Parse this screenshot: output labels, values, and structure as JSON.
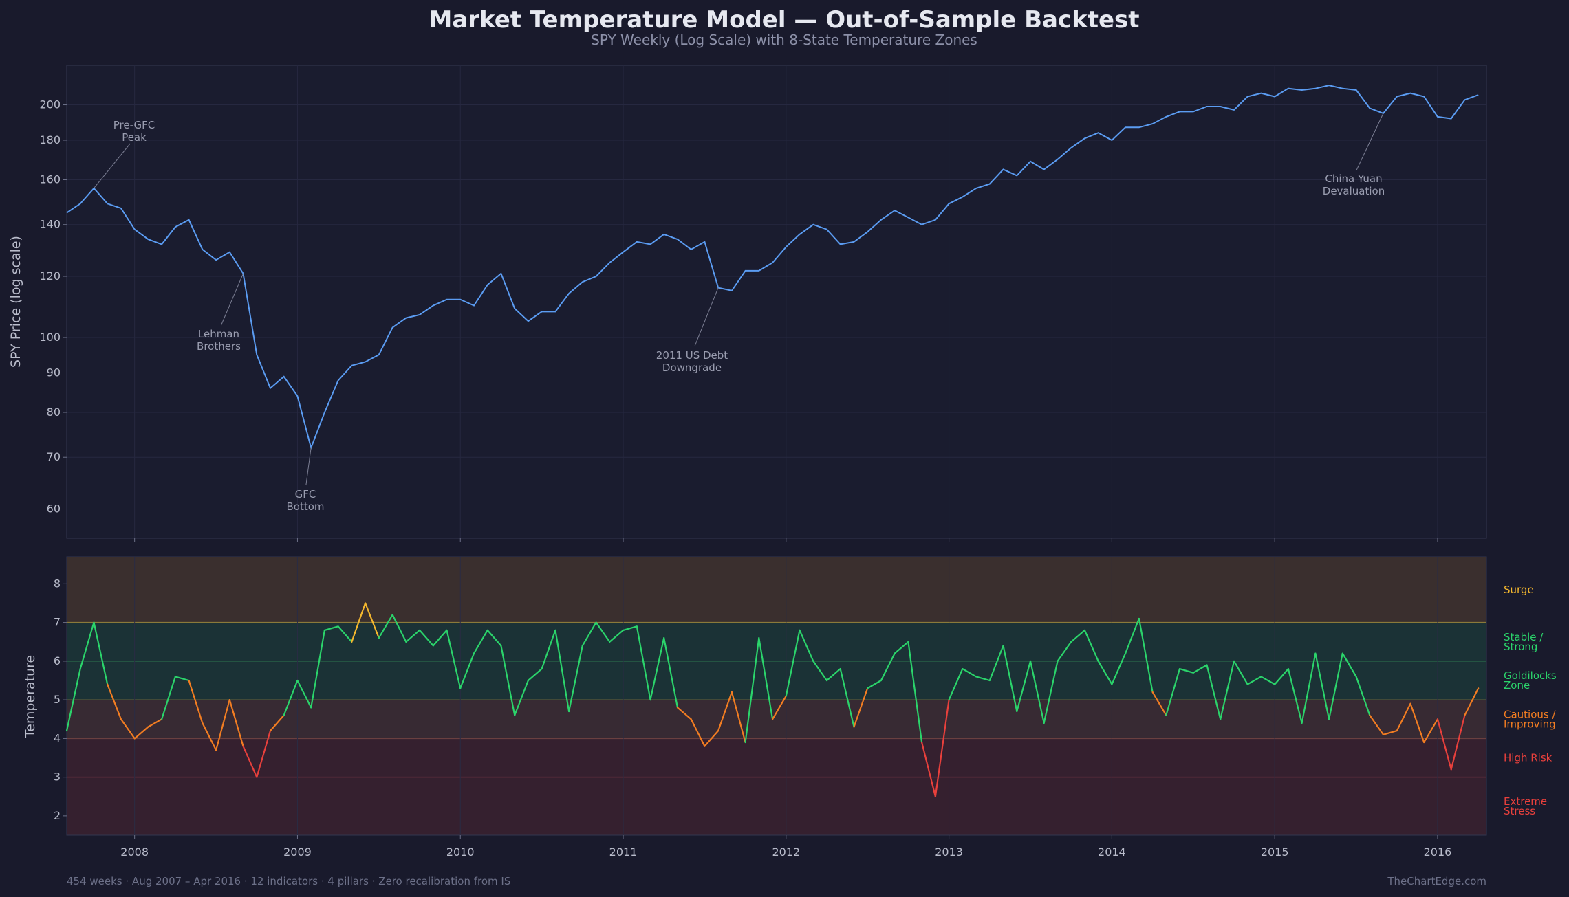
{
  "title": "Market Temperature Model — Out-of-Sample Backtest",
  "subtitle": "SPY Weekly (Log Scale) with 8-State Temperature Zones",
  "footer_left": "454 weeks · Aug 2007 – Apr 2016 · 12 indicators · 4 pillars · Zero recalibration from IS",
  "footer_right": "TheChartEdge.com",
  "colors": {
    "background": "#191a2c",
    "price_line": "#5b9cf2",
    "surge": "#f5b82e",
    "stable": "#2bd46b",
    "goldilocks": "#2bd46b",
    "cautious": "#f27d22",
    "high_risk": "#e8403c",
    "extreme": "#e8403c"
  },
  "chart_data": [
    {
      "type": "line",
      "title": "",
      "ylabel": "SPY Price (log scale)",
      "xlabel": "",
      "scale": "log",
      "ylim": [
        55,
        225
      ],
      "yticks": [
        60,
        70,
        80,
        90,
        100,
        120,
        140,
        160,
        180,
        200
      ],
      "xlim": [
        "2007-08",
        "2016-04"
      ],
      "xticks": [
        "2008",
        "2009",
        "2010",
        "2011",
        "2012",
        "2013",
        "2014",
        "2015",
        "2016"
      ],
      "grid": true,
      "series": [
        {
          "x": [
            "2007-08",
            "2007-09",
            "2007-10",
            "2007-11",
            "2007-12",
            "2008-01",
            "2008-02",
            "2008-03",
            "2008-04",
            "2008-05",
            "2008-06",
            "2008-07",
            "2008-08",
            "2008-09",
            "2008-10",
            "2008-11",
            "2008-12",
            "2009-01",
            "2009-02",
            "2009-03",
            "2009-04",
            "2009-05",
            "2009-06",
            "2009-07",
            "2009-08",
            "2009-09",
            "2009-10",
            "2009-11",
            "2009-12",
            "2010-01",
            "2010-02",
            "2010-03",
            "2010-04",
            "2010-05",
            "2010-06",
            "2010-07",
            "2010-08",
            "2010-09",
            "2010-10",
            "2010-11",
            "2010-12",
            "2011-01",
            "2011-02",
            "2011-03",
            "2011-04",
            "2011-05",
            "2011-06",
            "2011-07",
            "2011-08",
            "2011-09",
            "2011-10",
            "2011-11",
            "2011-12",
            "2012-01",
            "2012-02",
            "2012-03",
            "2012-04",
            "2012-05",
            "2012-06",
            "2012-07",
            "2012-08",
            "2012-09",
            "2012-10",
            "2012-11",
            "2012-12",
            "2013-01",
            "2013-02",
            "2013-03",
            "2013-04",
            "2013-05",
            "2013-06",
            "2013-07",
            "2013-08",
            "2013-09",
            "2013-10",
            "2013-11",
            "2013-12",
            "2014-01",
            "2014-02",
            "2014-03",
            "2014-04",
            "2014-05",
            "2014-06",
            "2014-07",
            "2014-08",
            "2014-09",
            "2014-10",
            "2014-11",
            "2014-12",
            "2015-01",
            "2015-02",
            "2015-03",
            "2015-04",
            "2015-05",
            "2015-06",
            "2015-07",
            "2015-08",
            "2015-09",
            "2015-10",
            "2015-11",
            "2015-12",
            "2016-01",
            "2016-02",
            "2016-03",
            "2016-04"
          ],
          "y": [
            145,
            149,
            156,
            149,
            147,
            138,
            134,
            132,
            139,
            142,
            130,
            126,
            129,
            121,
            95,
            86,
            89,
            84,
            72,
            80,
            88,
            92,
            93,
            95,
            103,
            106,
            107,
            110,
            112,
            112,
            110,
            117,
            121,
            109,
            105,
            108,
            108,
            114,
            118,
            120,
            125,
            129,
            133,
            132,
            136,
            134,
            130,
            133,
            116,
            115,
            122,
            122,
            125,
            131,
            136,
            140,
            138,
            132,
            133,
            137,
            142,
            146,
            143,
            140,
            142,
            149,
            152,
            156,
            158,
            165,
            162,
            169,
            165,
            170,
            176,
            181,
            184,
            180,
            187,
            187,
            189,
            193,
            196,
            196,
            199,
            199,
            197,
            205,
            207,
            205,
            210,
            209,
            210,
            212,
            210,
            209,
            198,
            195,
            205,
            207,
            205,
            193,
            192,
            203,
            206
          ]
        }
      ],
      "annotations": [
        {
          "text_lines": [
            "Pre-GFC",
            "Peak"
          ]
        },
        {
          "text_lines": [
            "Lehman",
            "Brothers"
          ]
        },
        {
          "text_lines": [
            "GFC",
            "Bottom"
          ]
        },
        {
          "text_lines": [
            "2011 US Debt",
            "Downgrade"
          ]
        },
        {
          "text_lines": [
            "China Yuan",
            "Devaluation"
          ]
        }
      ]
    },
    {
      "type": "line",
      "title": "",
      "ylabel": "Temperature",
      "xlabel": "",
      "ylim": [
        1.5,
        8.7
      ],
      "yticks": [
        2,
        3,
        4,
        5,
        6,
        7,
        8
      ],
      "xticks": [
        "2008",
        "2009",
        "2010",
        "2011",
        "2012",
        "2013",
        "2014",
        "2015",
        "2016"
      ],
      "grid": true,
      "zones": [
        {
          "name": "Surge",
          "from": 7,
          "to": 8.7,
          "label_lines": [
            "Surge"
          ]
        },
        {
          "name": "Stable / Strong",
          "from": 6,
          "to": 7,
          "label_lines": [
            "Stable /",
            "Strong"
          ]
        },
        {
          "name": "Goldilocks Zone",
          "from": 5,
          "to": 6,
          "label_lines": [
            "Goldilocks",
            "Zone"
          ]
        },
        {
          "name": "Cautious / Improving",
          "from": 4,
          "to": 5,
          "label_lines": [
            "Cautious /",
            "Improving"
          ]
        },
        {
          "name": "High Risk",
          "from": 3,
          "to": 4,
          "label_lines": [
            "High Risk"
          ]
        },
        {
          "name": "Extreme Stress",
          "from": 1.5,
          "to": 3,
          "label_lines": [
            "Extreme",
            "Stress"
          ]
        }
      ],
      "series": [
        {
          "x": [
            "2007-08",
            "2007-09",
            "2007-10",
            "2007-11",
            "2007-12",
            "2008-01",
            "2008-02",
            "2008-03",
            "2008-04",
            "2008-05",
            "2008-06",
            "2008-07",
            "2008-08",
            "2008-09",
            "2008-10",
            "2008-11",
            "2008-12",
            "2009-01",
            "2009-02",
            "2009-03",
            "2009-04",
            "2009-05",
            "2009-06",
            "2009-07",
            "2009-08",
            "2009-09",
            "2009-10",
            "2009-11",
            "2009-12",
            "2010-01",
            "2010-02",
            "2010-03",
            "2010-04",
            "2010-05",
            "2010-06",
            "2010-07",
            "2010-08",
            "2010-09",
            "2010-10",
            "2010-11",
            "2010-12",
            "2011-01",
            "2011-02",
            "2011-03",
            "2011-04",
            "2011-05",
            "2011-06",
            "2011-07",
            "2011-08",
            "2011-09",
            "2011-10",
            "2011-11",
            "2011-12",
            "2012-01",
            "2012-02",
            "2012-03",
            "2012-04",
            "2012-05",
            "2012-06",
            "2012-07",
            "2012-08",
            "2012-09",
            "2012-10",
            "2012-11",
            "2012-12",
            "2013-01",
            "2013-02",
            "2013-03",
            "2013-04",
            "2013-05",
            "2013-06",
            "2013-07",
            "2013-08",
            "2013-09",
            "2013-10",
            "2013-11",
            "2013-12",
            "2014-01",
            "2014-02",
            "2014-03",
            "2014-04",
            "2014-05",
            "2014-06",
            "2014-07",
            "2014-08",
            "2014-09",
            "2014-10",
            "2014-11",
            "2014-12",
            "2015-01",
            "2015-02",
            "2015-03",
            "2015-04",
            "2015-05",
            "2015-06",
            "2015-07",
            "2015-08",
            "2015-09",
            "2015-10",
            "2015-11",
            "2015-12",
            "2016-01",
            "2016-02",
            "2016-03",
            "2016-04"
          ],
          "y": [
            4.2,
            5.8,
            7.0,
            5.4,
            4.5,
            4.0,
            4.3,
            4.5,
            5.6,
            5.5,
            4.4,
            3.7,
            5.0,
            3.8,
            3.0,
            4.2,
            4.6,
            5.5,
            4.8,
            6.8,
            6.9,
            6.5,
            7.5,
            6.6,
            7.2,
            6.5,
            6.8,
            6.4,
            6.8,
            5.3,
            6.2,
            6.8,
            6.4,
            4.6,
            5.5,
            5.8,
            6.8,
            4.7,
            6.4,
            7.0,
            6.5,
            6.8,
            6.9,
            5.0,
            6.6,
            4.8,
            4.5,
            3.8,
            4.2,
            5.2,
            3.9,
            6.6,
            4.5,
            5.1,
            6.8,
            6.0,
            5.5,
            5.8,
            4.3,
            5.3,
            5.5,
            6.2,
            6.5,
            3.9,
            2.5,
            5.0,
            5.8,
            5.6,
            5.5,
            6.4,
            4.7,
            6.0,
            4.4,
            6.0,
            6.5,
            6.8,
            6.0,
            5.4,
            6.2,
            7.1,
            5.2,
            4.6,
            5.8,
            5.7,
            5.9,
            4.5,
            6.0,
            5.4,
            5.6,
            5.4,
            5.8,
            4.4,
            6.2,
            4.5,
            6.2,
            5.6,
            4.6,
            4.1,
            4.2,
            4.9,
            3.9,
            4.5,
            3.2,
            4.6,
            5.3
          ]
        }
      ]
    }
  ]
}
